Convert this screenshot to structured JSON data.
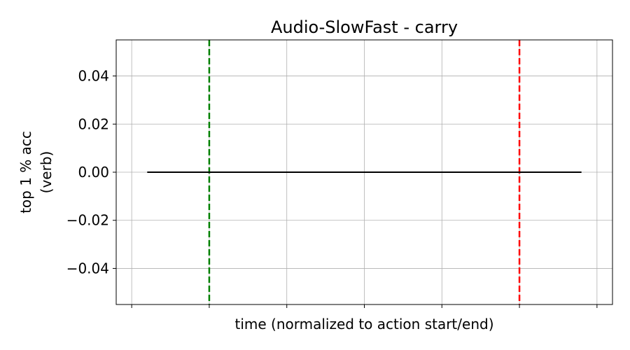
{
  "chart_data": {
    "type": "line",
    "title": "Audio-SlowFast - carry",
    "xlabel": "time (normalized to action start/end)",
    "ylabel_line1": "top 1 % acc",
    "ylabel_line2": "(verb)",
    "xlim": [
      -1.2,
      5.2
    ],
    "ylim": [
      -0.055,
      0.055
    ],
    "x_ticks": [
      -1,
      0,
      1,
      2,
      3,
      4,
      5
    ],
    "x_tick_labels_visible": false,
    "y_ticks": [
      0.04,
      0.02,
      0.0,
      -0.02,
      -0.04
    ],
    "y_tick_labels": [
      "0.04",
      "0.02",
      "0.00",
      "−0.02",
      "−0.04"
    ],
    "grid": true,
    "series": [
      {
        "x": [
          -0.8,
          4.8
        ],
        "y": [
          0.0,
          0.0
        ],
        "color": "#000000"
      }
    ],
    "vlines": [
      {
        "x": 0,
        "color": "#008000",
        "style": "dashed"
      },
      {
        "x": 4,
        "color": "#ff0000",
        "style": "dashed"
      }
    ]
  }
}
